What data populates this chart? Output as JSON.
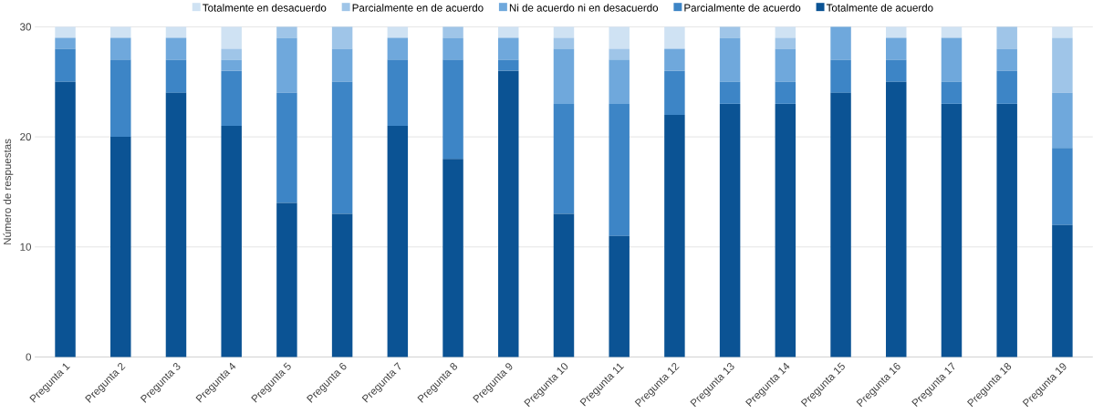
{
  "chart_data": {
    "type": "bar",
    "stacked": true,
    "ylabel": "Número de respuestas",
    "categories": [
      "Pregunta 1",
      "Pregunta 2",
      "Pregunta 3",
      "Pregunta 4",
      "Pregunta 5",
      "Pregunta 6",
      "Pregunta 7",
      "Pregunta 8",
      "Pregunta 9",
      "Pregunta 10",
      "Pregunta 11",
      "Pregunta 12",
      "Pregunta 13",
      "Pregunta 14",
      "Pregunta 15",
      "Pregunta 16",
      "Pregunta 17",
      "Pregunta 18",
      "Pregunta 19"
    ],
    "series": [
      {
        "name": "Totalmente de acuerdo",
        "color": "#0b5394",
        "values": [
          25,
          20,
          24,
          21,
          14,
          13,
          21,
          18,
          26,
          13,
          11,
          22,
          23,
          23,
          24,
          25,
          23,
          23,
          12
        ]
      },
      {
        "name": "Parcialmente de acuerdo",
        "color": "#3d85c6",
        "values": [
          3,
          7,
          3,
          5,
          10,
          12,
          6,
          9,
          1,
          10,
          12,
          4,
          2,
          2,
          3,
          2,
          2,
          3,
          7
        ]
      },
      {
        "name": "Ni de acuerdo ni en desacuerdo",
        "color": "#6fa8dc",
        "values": [
          1,
          2,
          2,
          1,
          5,
          3,
          2,
          2,
          2,
          5,
          4,
          2,
          4,
          3,
          3,
          2,
          4,
          2,
          5
        ]
      },
      {
        "name": "Parcialmente en de acuerdo",
        "color": "#9fc5e8",
        "values": [
          0,
          0,
          0,
          1,
          1,
          2,
          0,
          1,
          0,
          1,
          1,
          0,
          1,
          1,
          0,
          0,
          0,
          2,
          5
        ]
      },
      {
        "name": "Totalmente en desacuerdo",
        "color": "#cfe2f3",
        "values": [
          1,
          1,
          1,
          2,
          0,
          0,
          1,
          0,
          1,
          1,
          2,
          2,
          0,
          1,
          0,
          1,
          1,
          0,
          1
        ]
      }
    ],
    "ylim": [
      0,
      30
    ],
    "yticks": [
      0,
      10,
      20,
      30
    ],
    "grid": "y",
    "legend": "top"
  }
}
